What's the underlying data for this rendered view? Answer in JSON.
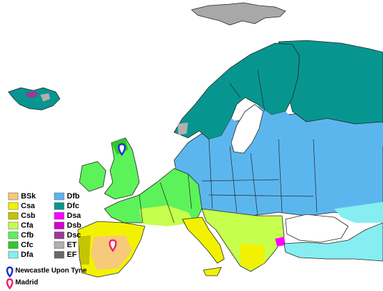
{
  "legend": {
    "items": [
      {
        "label": "BSk",
        "color": "#f7c97a"
      },
      {
        "label": "Csa",
        "color": "#f2f200"
      },
      {
        "label": "Csb",
        "color": "#c4c400"
      },
      {
        "label": "Cfa",
        "color": "#c6ff4e"
      },
      {
        "label": "Cfb",
        "color": "#5cf25a"
      },
      {
        "label": "Cfc",
        "color": "#2ec82c"
      },
      {
        "label": "Dfa",
        "color": "#86eef0"
      },
      {
        "label": "Dfb",
        "color": "#5cb6ee"
      },
      {
        "label": "Dfc",
        "color": "#07968f"
      },
      {
        "label": "Dsa",
        "color": "#ff00ff"
      },
      {
        "label": "Dsb",
        "color": "#d000c8"
      },
      {
        "label": "Dsc",
        "color": "#9a3a96"
      },
      {
        "label": "ET",
        "color": "#b0b0b0"
      },
      {
        "label": "EF",
        "color": "#686868"
      }
    ]
  },
  "markers": [
    {
      "label": "Newcastle Upon Tyne",
      "color": "#1e2fd6"
    },
    {
      "label": "Madrid",
      "color": "#f0246a"
    }
  ]
}
